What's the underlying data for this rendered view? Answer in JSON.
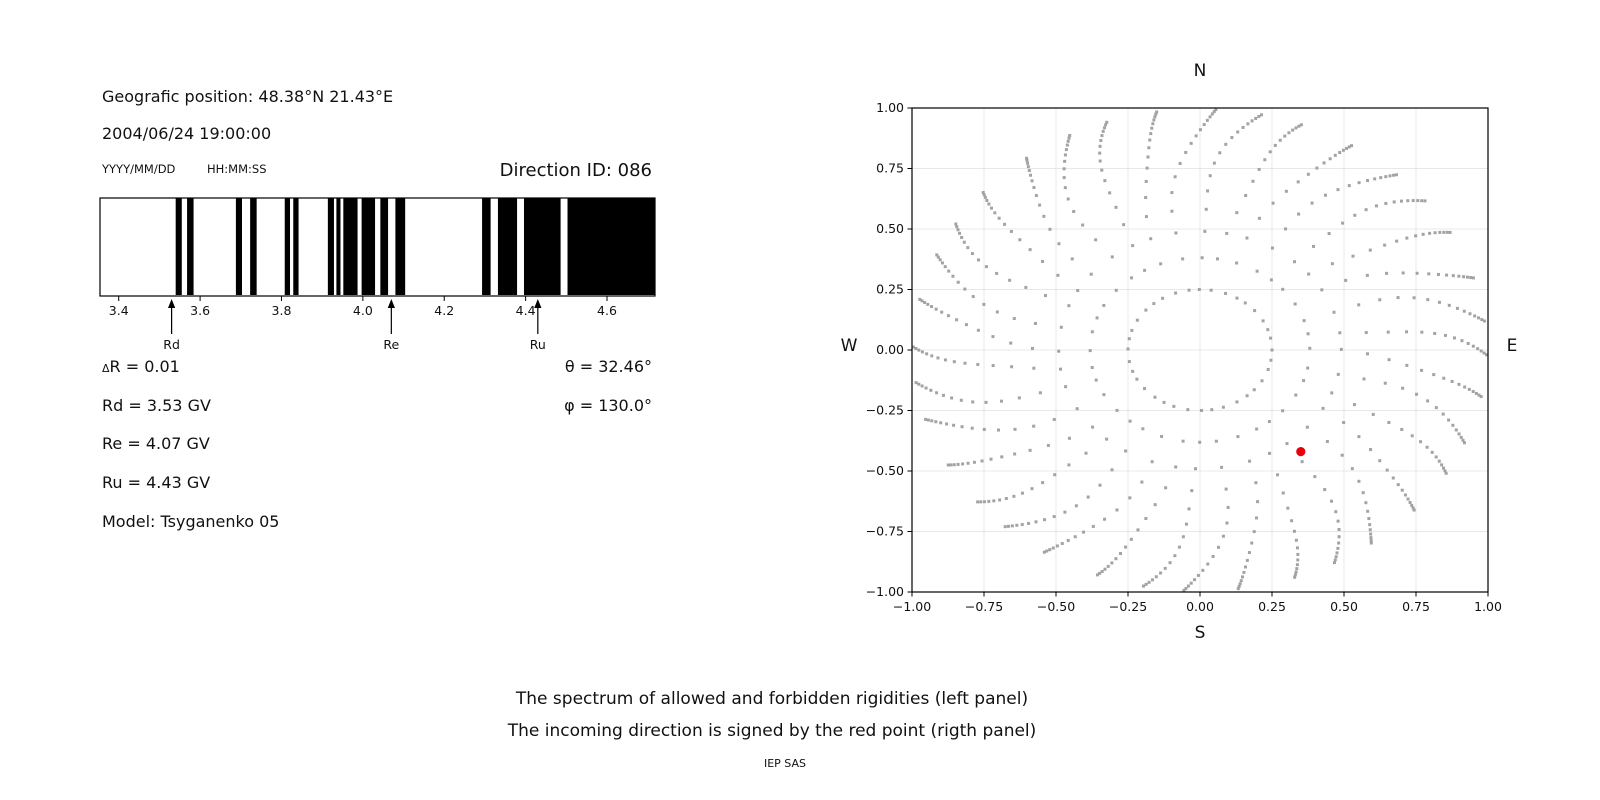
{
  "header": {
    "geo_position": "Geografic position: 48.38°N 21.43°E",
    "datetime": "2004/06/24 19:00:00",
    "date_format_label": "YYYY/MM/DD",
    "time_format_label": "HH:MM:SS",
    "direction_id": "Direction ID: 086"
  },
  "stats": {
    "delta_symbol": "Δ",
    "delta_rest": "R = 0.01",
    "rd": "Rd = 3.53 GV",
    "re": "Re = 4.07 GV",
    "ru": "Ru = 4.43 GV",
    "model": "Model: Tsyganenko 05",
    "theta": "θ = 32.46°",
    "phi": "φ = 130.0°"
  },
  "captions": {
    "line1": "The spectrum of allowed and forbidden rigidities (left panel)",
    "line2": "The incoming direction is signed by the red point (rigth panel)",
    "credit": "IEP SAS"
  },
  "chart_data": [
    {
      "id": "rigidity-spectrum",
      "type": "bar",
      "description": "Barcode spectrum: black bands = allowed rigidities, white gaps = forbidden rigidities",
      "x_unit": "GV",
      "xlim": [
        3.354,
        4.718
      ],
      "xticks": [
        3.4,
        3.6,
        3.8,
        4.0,
        4.2,
        4.4,
        4.6
      ],
      "xtick_labels": [
        "3.4",
        "3.6",
        "3.8",
        "4.0",
        "4.2",
        "4.4",
        "4.6"
      ],
      "band_color": "#000000",
      "allowed_bands_gv": [
        [
          3.54,
          3.555
        ],
        [
          3.568,
          3.584
        ],
        [
          3.688,
          3.703
        ],
        [
          3.723,
          3.739
        ],
        [
          3.808,
          3.821
        ],
        [
          3.829,
          3.842
        ],
        [
          3.914,
          3.929
        ],
        [
          3.935,
          3.945
        ],
        [
          3.952,
          3.987
        ],
        [
          3.997,
          4.03
        ],
        [
          4.043,
          4.062
        ],
        [
          4.08,
          4.104
        ],
        [
          4.293,
          4.314
        ],
        [
          4.332,
          4.379
        ],
        [
          4.396,
          4.486
        ],
        [
          4.503,
          4.718
        ]
      ],
      "markers": [
        {
          "label": "Rd",
          "value_gv": 3.53
        },
        {
          "label": "Re",
          "value_gv": 4.07
        },
        {
          "label": "Ru",
          "value_gv": 4.43
        }
      ]
    },
    {
      "id": "asymptotic-directions",
      "type": "scatter",
      "description": "Asymptotic directions map; gray dotted rays every 10 degrees from inner circle r=0.25 to r=1; red point marks incoming direction",
      "xlim": [
        -1,
        1
      ],
      "ylim": [
        -1,
        1
      ],
      "xticks": [
        -1,
        -0.75,
        -0.5,
        -0.25,
        0,
        0.25,
        0.5,
        0.75,
        1
      ],
      "yticks": [
        1,
        0.75,
        0.5,
        0.25,
        0,
        -0.25,
        -0.5,
        -0.75,
        -1
      ],
      "xtick_labels": [
        "−1.00",
        "−0.75",
        "−0.50",
        "−0.25",
        "0.00",
        "0.25",
        "0.50",
        "0.75",
        "1.00"
      ],
      "ytick_labels": [
        "1.00",
        "0.75",
        "0.50",
        "0.25",
        "0.00",
        "−0.25",
        "−0.50",
        "−0.75",
        "−1.00"
      ],
      "grid": true,
      "grid_color": "#e8e8e8",
      "compass_labels": {
        "top": "N",
        "bottom": "S",
        "left": "W",
        "right": "E"
      },
      "dot_color": "#9b9b9b",
      "rays": {
        "count": 36,
        "angle_step_deg": 10,
        "inner_radius": 0.25,
        "outer_radius": 0.995,
        "dots_per_ray": 17,
        "radial_spacing": "geometric_dense_at_tip",
        "spacing_ratio": 1.2,
        "tip_twist_deg": -12
      },
      "red_point": {
        "x": 0.35,
        "y": -0.42,
        "color": "#e8000b"
      }
    }
  ]
}
